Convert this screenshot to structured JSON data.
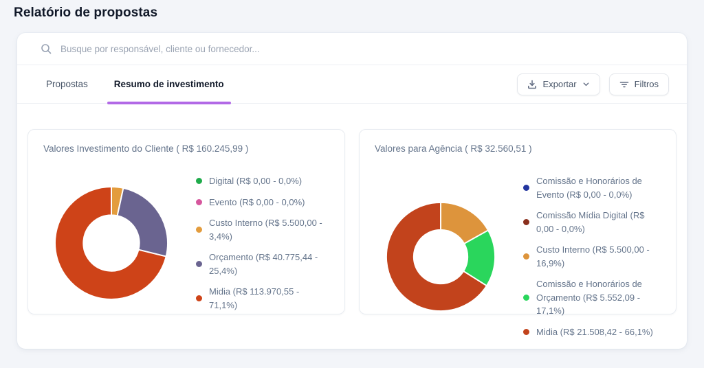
{
  "page": {
    "title": "Relatório de propostas"
  },
  "search": {
    "placeholder": "Busque por responsável, cliente ou fornecedor..."
  },
  "tabs": [
    {
      "label": "Propostas",
      "active": false
    },
    {
      "label": "Resumo de investimento",
      "active": true
    }
  ],
  "toolbar": {
    "export_label": "Exportar",
    "filters_label": "Filtros"
  },
  "colors": {
    "tab_accent": "#b269e6",
    "card_border": "#e8ecf1",
    "text_muted": "#64748b"
  },
  "chart_data": [
    {
      "type": "pie",
      "donut": true,
      "legend_position": "right",
      "title": "Valores Investimento do Cliente ( R$ 160.245,99 )",
      "total": "R$ 160.245,99",
      "series": [
        {
          "label": "Digital",
          "amount": "R$ 0,00",
          "percent": "0,0%",
          "value": 0.0,
          "color": "#1fab4b"
        },
        {
          "label": "Evento",
          "amount": "R$ 0,00",
          "percent": "0,0%",
          "value": 0.0,
          "color": "#d6569d"
        },
        {
          "label": "Custo Interno",
          "amount": "R$ 5.500,00",
          "percent": "3,4%",
          "value": 3.4,
          "color": "#e39c3d"
        },
        {
          "label": "Orçamento",
          "amount": "R$ 40.775,44",
          "percent": "25,4%",
          "value": 25.4,
          "color": "#6a6490"
        },
        {
          "label": "Midia",
          "amount": "R$ 113.970,55",
          "percent": "71,1%",
          "value": 71.1,
          "color": "#ce4318"
        }
      ]
    },
    {
      "type": "pie",
      "donut": true,
      "legend_position": "right",
      "title": "Valores para Agência ( R$ 32.560,51 )",
      "total": "R$ 32.560,51",
      "series": [
        {
          "label": "Comissão e Honorários de Evento",
          "amount": "R$ 0,00",
          "percent": "0,0%",
          "value": 0.0,
          "color": "#23359f"
        },
        {
          "label": "Comissão Mídia Digital",
          "amount": "R$ 0,00",
          "percent": "0,0%",
          "value": 0.0,
          "color": "#8a2f1d"
        },
        {
          "label": "Custo Interno",
          "amount": "R$ 5.500,00",
          "percent": "16,9%",
          "value": 16.9,
          "color": "#dd943c"
        },
        {
          "label": "Comissão e Honorários de Orçamento",
          "amount": "R$ 5.552,09",
          "percent": "17,1%",
          "value": 17.1,
          "color": "#2ad65c"
        },
        {
          "label": "Midia",
          "amount": "R$ 21.508,42",
          "percent": "66,1%",
          "value": 66.1,
          "color": "#c2431c"
        }
      ]
    }
  ]
}
